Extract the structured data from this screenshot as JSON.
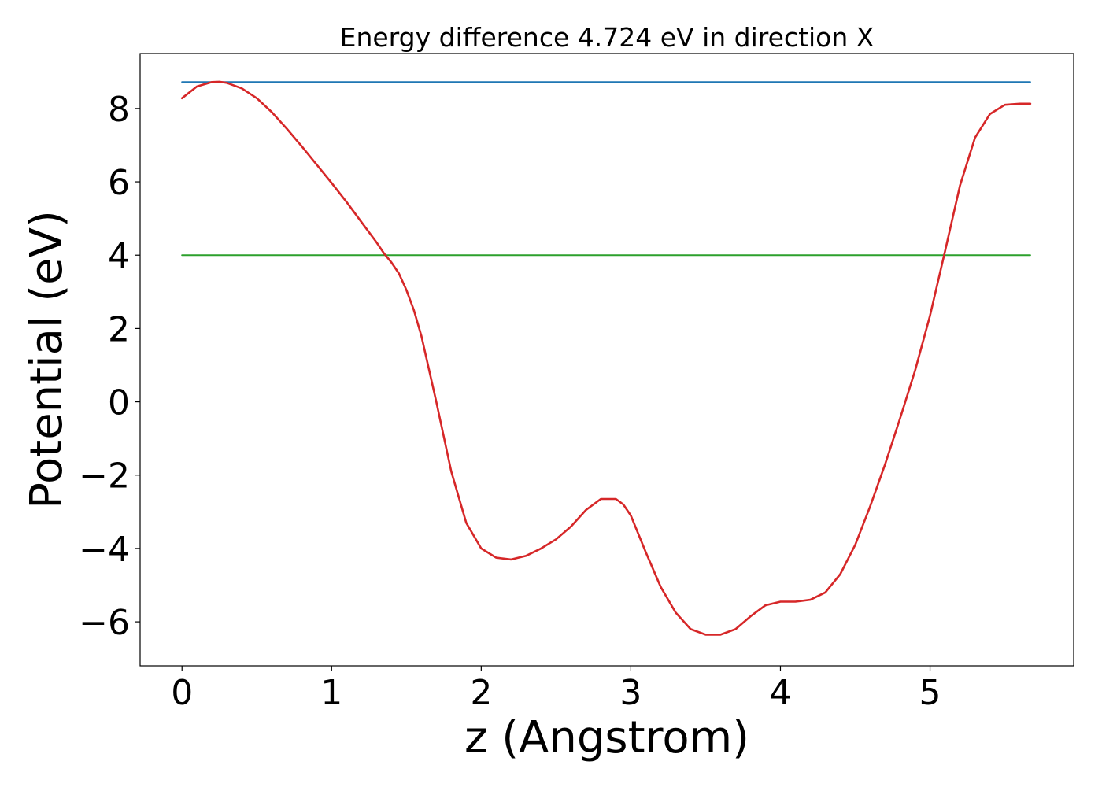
{
  "chart_data": {
    "type": "line",
    "title": "Energy difference 4.724 eV in direction X",
    "xlabel": "z (Angstrom)",
    "ylabel": "Potential (eV)",
    "xlim": [
      -0.28,
      5.96
    ],
    "ylim": [
      -7.2,
      9.5
    ],
    "xticks": [
      0,
      1,
      2,
      3,
      4,
      5
    ],
    "yticks": [
      -6,
      -4,
      -2,
      0,
      2,
      4,
      6,
      8
    ],
    "xtick_labels": [
      "0",
      "1",
      "2",
      "3",
      "4",
      "5"
    ],
    "ytick_labels": [
      "−6",
      "−4",
      "−2",
      "0",
      "2",
      "4",
      "6",
      "8"
    ],
    "grid": false,
    "series": [
      {
        "color": "#1f77b4",
        "x": [
          0,
          5.67
        ],
        "y": [
          8.72,
          8.72
        ]
      },
      {
        "color": "#2ca02c",
        "x": [
          0,
          5.67
        ],
        "y": [
          4.0,
          4.0
        ]
      },
      {
        "color": "#d62728",
        "x": [
          0,
          0.1,
          0.2,
          0.25,
          0.3,
          0.4,
          0.5,
          0.6,
          0.7,
          0.8,
          0.9,
          1.0,
          1.1,
          1.2,
          1.3,
          1.35,
          1.4,
          1.45,
          1.5,
          1.55,
          1.6,
          1.7,
          1.8,
          1.9,
          2.0,
          2.1,
          2.2,
          2.3,
          2.4,
          2.5,
          2.6,
          2.7,
          2.8,
          2.9,
          2.95,
          3.0,
          3.1,
          3.2,
          3.3,
          3.4,
          3.5,
          3.6,
          3.7,
          3.8,
          3.9,
          4.0,
          4.1,
          4.2,
          4.3,
          4.4,
          4.5,
          4.6,
          4.7,
          4.8,
          4.9,
          5.0,
          5.1,
          5.2,
          5.3,
          5.4,
          5.5,
          5.6,
          5.67
        ],
        "y": [
          8.28,
          8.6,
          8.72,
          8.73,
          8.7,
          8.55,
          8.28,
          7.9,
          7.45,
          6.97,
          6.47,
          5.97,
          5.45,
          4.9,
          4.35,
          4.05,
          3.8,
          3.5,
          3.05,
          2.5,
          1.8,
          0.0,
          -1.9,
          -3.3,
          -4.0,
          -4.25,
          -4.3,
          -4.2,
          -4.0,
          -3.75,
          -3.4,
          -2.95,
          -2.65,
          -2.65,
          -2.8,
          -3.1,
          -4.1,
          -5.05,
          -5.75,
          -6.2,
          -6.35,
          -6.35,
          -6.2,
          -5.85,
          -5.55,
          -5.45,
          -5.45,
          -5.4,
          -5.2,
          -4.7,
          -3.9,
          -2.85,
          -1.7,
          -0.45,
          0.85,
          2.35,
          4.1,
          5.9,
          7.2,
          7.85,
          8.1,
          8.13,
          8.13
        ]
      }
    ]
  }
}
